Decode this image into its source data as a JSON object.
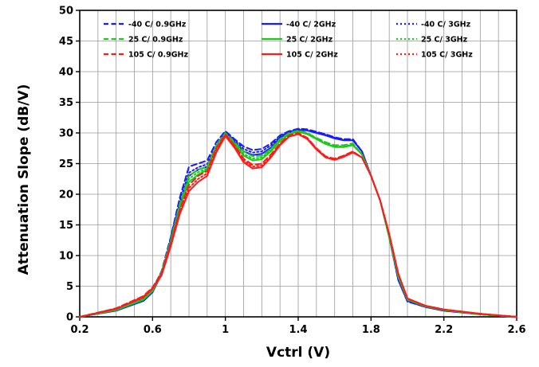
{
  "chart_data": {
    "type": "line",
    "title": "",
    "xlabel": "Vctrl (V)",
    "ylabel": "Attenuation Slope (dB/V)",
    "xlim": [
      0.2,
      2.6
    ],
    "ylim": [
      0,
      50
    ],
    "x_ticks": [
      "0.2",
      "0.6",
      "1",
      "1.4",
      "1.8",
      "2.2",
      "2.6"
    ],
    "y_ticks": [
      "0",
      "5",
      "10",
      "15",
      "20",
      "25",
      "30",
      "35",
      "40",
      "45",
      "50"
    ],
    "grid": true,
    "legend_position": "top",
    "series": [
      {
        "name": "-40 C/ 0.9GHz",
        "color": "#1a1aff",
        "dash": "dashed",
        "x": [
          0.2,
          0.4,
          0.55,
          0.6,
          0.65,
          0.7,
          0.75,
          0.8,
          0.85,
          0.9,
          0.95,
          1.0,
          1.05,
          1.1,
          1.15,
          1.2,
          1.25,
          1.3,
          1.35,
          1.4,
          1.45,
          1.5,
          1.55,
          1.6,
          1.65,
          1.7,
          1.75,
          1.8,
          1.85,
          1.9,
          1.95,
          2.0,
          2.1,
          2.2,
          2.4,
          2.6
        ],
        "y": [
          0,
          1.2,
          3,
          4.5,
          7.5,
          13,
          19.5,
          24.5,
          25,
          25.5,
          28.5,
          30.3,
          29,
          27.8,
          27.2,
          27.4,
          28.3,
          29.6,
          30.3,
          30.7,
          30.6,
          30.2,
          29.8,
          29.3,
          29,
          29,
          27,
          23,
          19,
          13,
          6,
          2.5,
          1.6,
          1,
          0.4,
          0
        ]
      },
      {
        "name": "-40 C/ 2GHz",
        "color": "#1a1aff",
        "dash": "solid",
        "x": [
          0.2,
          0.4,
          0.55,
          0.6,
          0.65,
          0.7,
          0.75,
          0.8,
          0.85,
          0.9,
          0.95,
          1.0,
          1.05,
          1.1,
          1.15,
          1.2,
          1.25,
          1.3,
          1.35,
          1.4,
          1.45,
          1.5,
          1.55,
          1.6,
          1.65,
          1.7,
          1.75,
          1.8,
          1.85,
          1.9,
          1.95,
          2.0,
          2.1,
          2.2,
          2.4,
          2.6
        ],
        "y": [
          0,
          1,
          2.6,
          4,
          7,
          12.5,
          18.5,
          23,
          24,
          24.5,
          27.5,
          30,
          28.6,
          27,
          26.4,
          26.6,
          27.6,
          29.2,
          30.1,
          30.5,
          30.4,
          30,
          29.6,
          29.1,
          28.8,
          28.8,
          27,
          23,
          19,
          13,
          6,
          2.6,
          1.6,
          1,
          0.4,
          0
        ]
      },
      {
        "name": "-40 C/ 3GHz",
        "color": "#1a1aff",
        "dash": "dotted",
        "x": [
          0.2,
          0.4,
          0.55,
          0.6,
          0.65,
          0.7,
          0.75,
          0.8,
          0.85,
          0.9,
          0.95,
          1.0,
          1.05,
          1.1,
          1.15,
          1.2,
          1.25,
          1.3,
          1.35,
          1.4,
          1.45,
          1.5,
          1.55,
          1.6,
          1.65,
          1.7,
          1.75,
          1.8,
          1.85,
          1.9,
          1.95,
          2.0,
          2.1,
          2.2,
          2.4,
          2.6
        ],
        "y": [
          0,
          1.1,
          2.8,
          4.2,
          7.2,
          12.8,
          19,
          23.5,
          24.4,
          24.9,
          28,
          30.1,
          28.8,
          27.4,
          26.8,
          27,
          28,
          29.4,
          30.2,
          30.6,
          30.5,
          30.1,
          29.7,
          29.2,
          28.9,
          28.9,
          27,
          23,
          19,
          13,
          6,
          2.5,
          1.6,
          1,
          0.4,
          0
        ]
      },
      {
        "name": "25 C/ 0.9GHz",
        "color": "#19c919",
        "dash": "dashed",
        "x": [
          0.2,
          0.4,
          0.55,
          0.6,
          0.65,
          0.7,
          0.75,
          0.8,
          0.85,
          0.9,
          0.95,
          1.0,
          1.05,
          1.1,
          1.15,
          1.2,
          1.25,
          1.3,
          1.35,
          1.4,
          1.45,
          1.5,
          1.55,
          1.6,
          1.65,
          1.7,
          1.75,
          1.8,
          1.85,
          1.9,
          1.95,
          2.0,
          2.1,
          2.2,
          2.4,
          2.6
        ],
        "y": [
          0,
          1.3,
          3.2,
          4.6,
          7.4,
          12.5,
          18.5,
          23,
          24,
          24.5,
          28,
          30,
          28.5,
          27,
          26.2,
          26.3,
          27.4,
          29,
          30,
          30.4,
          30,
          29.2,
          28.5,
          28,
          28,
          28.3,
          26.5,
          23,
          19,
          13,
          6.5,
          2.8,
          1.7,
          1.1,
          0.4,
          0
        ]
      },
      {
        "name": "25 C/ 2GHz",
        "color": "#19c919",
        "dash": "solid",
        "x": [
          0.2,
          0.4,
          0.55,
          0.6,
          0.65,
          0.7,
          0.75,
          0.8,
          0.85,
          0.9,
          0.95,
          1.0,
          1.05,
          1.1,
          1.15,
          1.2,
          1.25,
          1.3,
          1.35,
          1.4,
          1.45,
          1.5,
          1.55,
          1.6,
          1.65,
          1.7,
          1.75,
          1.8,
          1.85,
          1.9,
          1.95,
          2.0,
          2.1,
          2.2,
          2.4,
          2.6
        ],
        "y": [
          0,
          1.1,
          2.8,
          4.2,
          7,
          12,
          17.8,
          22,
          23.2,
          24,
          27.5,
          29.8,
          28.2,
          26.3,
          25.5,
          25.7,
          27,
          28.7,
          29.8,
          30.2,
          29.8,
          29,
          28.2,
          27.7,
          27.7,
          28,
          26.5,
          23,
          19,
          13,
          6.5,
          2.8,
          1.7,
          1.1,
          0.4,
          0
        ]
      },
      {
        "name": "25 C/ 3GHz",
        "color": "#19c919",
        "dash": "dotted",
        "x": [
          0.2,
          0.4,
          0.55,
          0.6,
          0.65,
          0.7,
          0.75,
          0.8,
          0.85,
          0.9,
          0.95,
          1.0,
          1.05,
          1.1,
          1.15,
          1.2,
          1.25,
          1.3,
          1.35,
          1.4,
          1.45,
          1.5,
          1.55,
          1.6,
          1.65,
          1.7,
          1.75,
          1.8,
          1.85,
          1.9,
          1.95,
          2.0,
          2.1,
          2.2,
          2.4,
          2.6
        ],
        "y": [
          0,
          1.2,
          3,
          4.4,
          7.2,
          12.2,
          18.2,
          22.5,
          23.6,
          24.2,
          27.8,
          29.9,
          28.4,
          26.6,
          25.8,
          26,
          27.2,
          28.9,
          29.9,
          30.3,
          29.9,
          29.1,
          28.3,
          27.8,
          27.8,
          28.1,
          26.5,
          23,
          19,
          13,
          6.5,
          2.8,
          1.7,
          1.1,
          0.4,
          0
        ]
      },
      {
        "name": "105 C/ 0.9GHz",
        "color": "#ff1a1a",
        "dash": "dashed",
        "x": [
          0.2,
          0.4,
          0.55,
          0.6,
          0.65,
          0.7,
          0.75,
          0.8,
          0.85,
          0.9,
          0.95,
          1.0,
          1.05,
          1.1,
          1.15,
          1.2,
          1.25,
          1.3,
          1.35,
          1.4,
          1.45,
          1.5,
          1.55,
          1.6,
          1.65,
          1.7,
          1.75,
          1.8,
          1.85,
          1.9,
          1.95,
          2.0,
          2.1,
          2.2,
          2.4,
          2.6
        ],
        "y": [
          0,
          1.4,
          3.4,
          4.8,
          7.2,
          12,
          17.5,
          21.5,
          23,
          23.8,
          27.5,
          29.8,
          28,
          25.8,
          24.8,
          25,
          26.5,
          28.3,
          29.6,
          30,
          29.2,
          27.5,
          26.2,
          25.8,
          26.3,
          27,
          26,
          23,
          19,
          13.5,
          7,
          3,
          1.8,
          1.2,
          0.5,
          0
        ]
      },
      {
        "name": "105 C/ 2GHz",
        "color": "#ff1a1a",
        "dash": "solid",
        "x": [
          0.2,
          0.4,
          0.55,
          0.6,
          0.65,
          0.7,
          0.75,
          0.8,
          0.85,
          0.9,
          0.95,
          1.0,
          1.05,
          1.1,
          1.15,
          1.2,
          1.25,
          1.3,
          1.35,
          1.4,
          1.45,
          1.5,
          1.55,
          1.6,
          1.65,
          1.7,
          1.75,
          1.8,
          1.85,
          1.9,
          1.95,
          2.0,
          2.1,
          2.2,
          2.4,
          2.6
        ],
        "y": [
          0,
          1.3,
          3.2,
          4.6,
          6.8,
          11.5,
          16.8,
          20.5,
          22,
          23,
          26.8,
          29.5,
          27.6,
          25.2,
          24.2,
          24.4,
          26,
          28,
          29.4,
          29.8,
          29,
          27.3,
          26,
          25.6,
          26.1,
          26.8,
          26,
          23,
          19,
          13.5,
          7,
          3,
          1.8,
          1.2,
          0.5,
          0
        ]
      },
      {
        "name": "105 C/ 3GHz",
        "color": "#ff1a1a",
        "dash": "dotted",
        "x": [
          0.2,
          0.4,
          0.55,
          0.6,
          0.65,
          0.7,
          0.75,
          0.8,
          0.85,
          0.9,
          0.95,
          1.0,
          1.05,
          1.1,
          1.15,
          1.2,
          1.25,
          1.3,
          1.35,
          1.4,
          1.45,
          1.5,
          1.55,
          1.6,
          1.65,
          1.7,
          1.75,
          1.8,
          1.85,
          1.9,
          1.95,
          2.0,
          2.1,
          2.2,
          2.4,
          2.6
        ],
        "y": [
          0,
          1.35,
          3.3,
          4.7,
          7,
          11.8,
          17.2,
          21,
          22.5,
          23.4,
          27.2,
          29.6,
          27.8,
          25.5,
          24.5,
          24.7,
          26.2,
          28.1,
          29.5,
          29.9,
          29.1,
          27.4,
          26.1,
          25.7,
          26.2,
          26.9,
          26,
          23,
          19,
          13.5,
          7,
          3,
          1.8,
          1.2,
          0.5,
          0
        ]
      }
    ]
  }
}
